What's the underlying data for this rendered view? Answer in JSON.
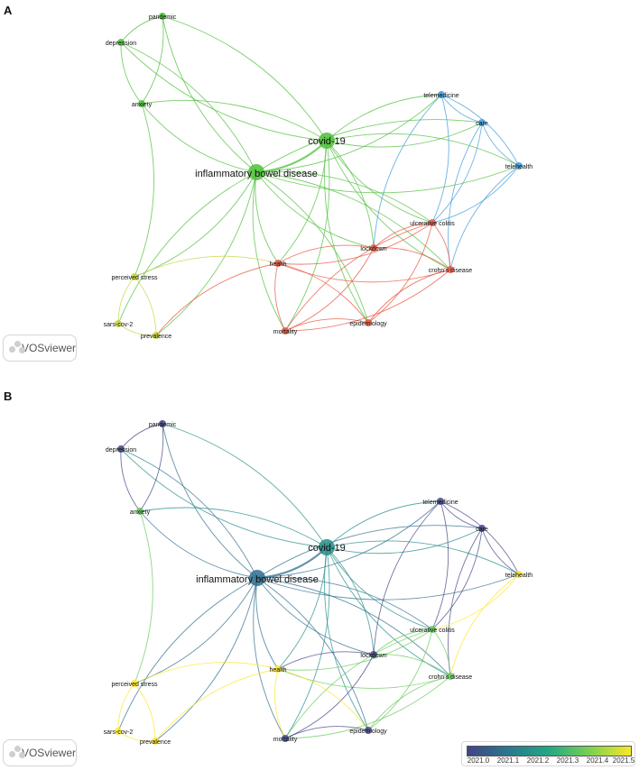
{
  "panels": [
    {
      "id": "A",
      "label": "A",
      "mode": "cluster"
    },
    {
      "id": "B",
      "label": "B",
      "mode": "overlay"
    }
  ],
  "watermark": {
    "text": "VOSviewer"
  },
  "colors": {
    "cluster_green": "#4dbf3a",
    "cluster_blue": "#3b9ad9",
    "cluster_red": "#e8533f",
    "cluster_yellow": "#c7d23a"
  },
  "colorbar": {
    "ticks": [
      "2021.0",
      "2021.1",
      "2021.2",
      "2021.3",
      "2021.4",
      "2021.5"
    ],
    "colors": [
      "#414487",
      "#2a788e",
      "#22a884",
      "#7ad151",
      "#fde725"
    ]
  },
  "nodes": [
    {
      "id": "ibd",
      "label": "inflammatory bowel disease",
      "cluster": "green",
      "year": 2021.1,
      "size": "large"
    },
    {
      "id": "covid",
      "label": "covid-19",
      "cluster": "green",
      "year": 2021.18,
      "size": "large"
    },
    {
      "id": "pandemic",
      "label": "pandemic",
      "cluster": "green",
      "year": 2021.0,
      "size": "small"
    },
    {
      "id": "depression",
      "label": "depression",
      "cluster": "green",
      "year": 2021.0,
      "size": "small"
    },
    {
      "id": "anxiety",
      "label": "anxiety",
      "cluster": "green",
      "year": 2021.35,
      "size": "small"
    },
    {
      "id": "telemedicine",
      "label": "telemedicine",
      "cluster": "blue",
      "year": 2021.0,
      "size": "small"
    },
    {
      "id": "care",
      "label": "care",
      "cluster": "blue",
      "year": 2021.0,
      "size": "small"
    },
    {
      "id": "telehealth",
      "label": "telehealth",
      "cluster": "blue",
      "year": 2021.5,
      "size": "small"
    },
    {
      "id": "ulcerative",
      "label": "ulcerative colitis",
      "cluster": "red",
      "year": 2021.35,
      "size": "small"
    },
    {
      "id": "lockdown",
      "label": "lockdown",
      "cluster": "red",
      "year": 2021.0,
      "size": "small"
    },
    {
      "id": "crohns",
      "label": "crohn's disease",
      "cluster": "red",
      "year": 2021.35,
      "size": "small"
    },
    {
      "id": "health",
      "label": "health",
      "cluster": "red",
      "year": 2021.5,
      "size": "small"
    },
    {
      "id": "epidemiology",
      "label": "epidemiology",
      "cluster": "red",
      "year": 2021.0,
      "size": "small"
    },
    {
      "id": "mortality",
      "label": "mortality",
      "cluster": "red",
      "year": 2021.0,
      "size": "small"
    },
    {
      "id": "perceived",
      "label": "perceived stress",
      "cluster": "yellow",
      "year": 2021.5,
      "size": "small"
    },
    {
      "id": "sars",
      "label": "sars-cov-2",
      "cluster": "yellow",
      "year": 2021.5,
      "size": "small"
    },
    {
      "id": "prevalence",
      "label": "prevalence",
      "cluster": "yellow",
      "year": 2021.5,
      "size": "small"
    }
  ],
  "edges": [
    [
      "ibd",
      "covid"
    ],
    [
      "ibd",
      "pandemic"
    ],
    [
      "ibd",
      "depression"
    ],
    [
      "ibd",
      "anxiety"
    ],
    [
      "ibd",
      "telemedicine"
    ],
    [
      "ibd",
      "care"
    ],
    [
      "ibd",
      "telehealth"
    ],
    [
      "ibd",
      "ulcerative"
    ],
    [
      "ibd",
      "lockdown"
    ],
    [
      "ibd",
      "crohns"
    ],
    [
      "ibd",
      "health"
    ],
    [
      "ibd",
      "epidemiology"
    ],
    [
      "ibd",
      "mortality"
    ],
    [
      "ibd",
      "perceived"
    ],
    [
      "ibd",
      "sars"
    ],
    [
      "ibd",
      "prevalence"
    ],
    [
      "covid",
      "pandemic"
    ],
    [
      "covid",
      "depression"
    ],
    [
      "covid",
      "anxiety"
    ],
    [
      "covid",
      "telemedicine"
    ],
    [
      "covid",
      "care"
    ],
    [
      "covid",
      "telehealth"
    ],
    [
      "covid",
      "ulcerative"
    ],
    [
      "covid",
      "lockdown"
    ],
    [
      "covid",
      "crohns"
    ],
    [
      "covid",
      "health"
    ],
    [
      "covid",
      "epidemiology"
    ],
    [
      "covid",
      "mortality"
    ],
    [
      "pandemic",
      "depression"
    ],
    [
      "pandemic",
      "anxiety"
    ],
    [
      "depression",
      "anxiety"
    ],
    [
      "anxiety",
      "perceived"
    ],
    [
      "telemedicine",
      "care"
    ],
    [
      "telemedicine",
      "telehealth"
    ],
    [
      "care",
      "telehealth"
    ],
    [
      "telemedicine",
      "ulcerative"
    ],
    [
      "telemedicine",
      "lockdown"
    ],
    [
      "care",
      "ulcerative"
    ],
    [
      "care",
      "crohns"
    ],
    [
      "telehealth",
      "ulcerative"
    ],
    [
      "telehealth",
      "crohns"
    ],
    [
      "ulcerative",
      "crohns"
    ],
    [
      "ulcerative",
      "lockdown"
    ],
    [
      "ulcerative",
      "health"
    ],
    [
      "ulcerative",
      "mortality"
    ],
    [
      "ulcerative",
      "epidemiology"
    ],
    [
      "crohns",
      "lockdown"
    ],
    [
      "crohns",
      "health"
    ],
    [
      "crohns",
      "epidemiology"
    ],
    [
      "crohns",
      "mortality"
    ],
    [
      "lockdown",
      "health"
    ],
    [
      "lockdown",
      "mortality"
    ],
    [
      "health",
      "mortality"
    ],
    [
      "health",
      "epidemiology"
    ],
    [
      "health",
      "prevalence"
    ],
    [
      "mortality",
      "epidemiology"
    ],
    [
      "perceived",
      "sars"
    ],
    [
      "perceived",
      "prevalence"
    ],
    [
      "sars",
      "prevalence"
    ],
    [
      "perceived",
      "health"
    ]
  ]
}
